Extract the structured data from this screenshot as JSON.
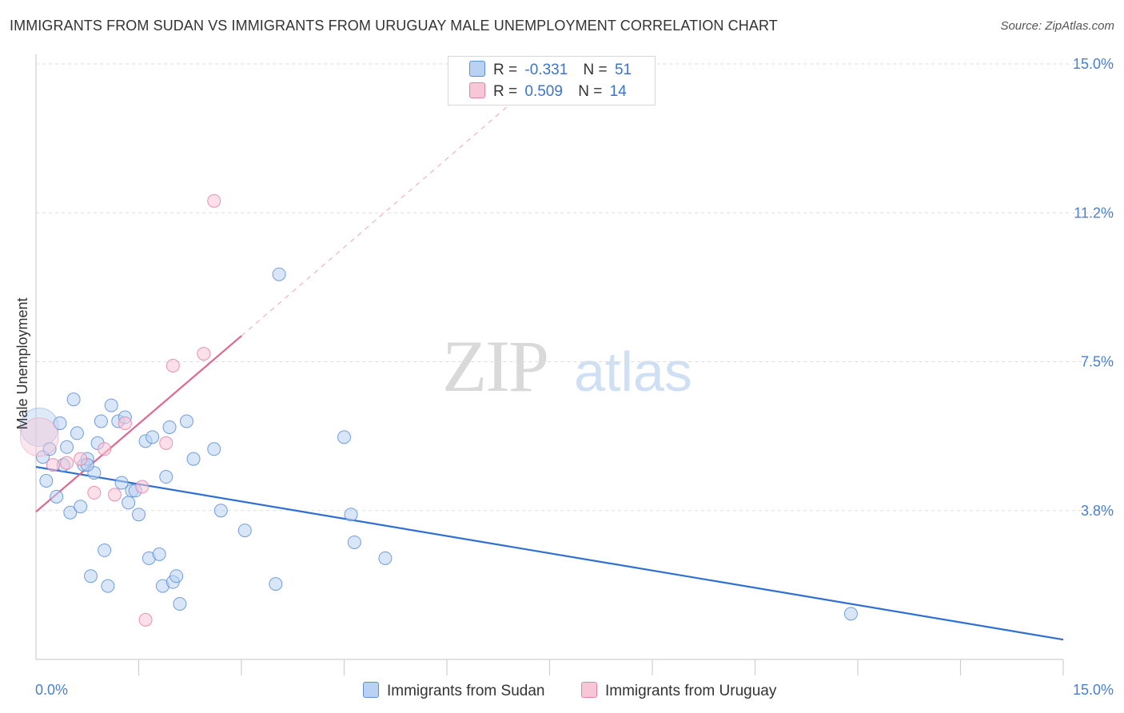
{
  "title": "IMMIGRANTS FROM SUDAN VS IMMIGRANTS FROM URUGUAY MALE UNEMPLOYMENT CORRELATION CHART",
  "source": "Source: ZipAtlas.com",
  "watermark": {
    "zip": "ZIP",
    "atlas": "atlas"
  },
  "legend": {
    "rows": [
      {
        "r_label": "R =",
        "r_value": "-0.331",
        "n_label": "N =",
        "n_value": "51"
      },
      {
        "r_label": "R =",
        "r_value": "0.509",
        "n_label": "N =",
        "n_value": "14"
      }
    ]
  },
  "chart_data": {
    "type": "scatter",
    "title": "IMMIGRANTS FROM SUDAN VS IMMIGRANTS FROM URUGUAY MALE UNEMPLOYMENT CORRELATION CHART",
    "xlabel": "",
    "ylabel": "Male Unemployment",
    "xlim": [
      0,
      15
    ],
    "ylim": [
      0,
      15
    ],
    "x_tick_labels": [
      "0.0%",
      "15.0%"
    ],
    "y_ticks": [
      3.75,
      7.5,
      11.25,
      15.0
    ],
    "y_tick_labels": [
      "3.8%",
      "7.5%",
      "11.2%",
      "15.0%"
    ],
    "grid": true,
    "legend_position": "bottom",
    "colors": {
      "sudan": "#5b8fd8",
      "sudan_fill": "#b9d1f2",
      "uruguay": "#e880a4",
      "uruguay_fill": "#f7c7d8",
      "sudan_line": "#2f6fcf",
      "uruguay_line": "#e0678f"
    },
    "series": [
      {
        "name": "Immigrants from Sudan",
        "trend": {
          "x0": 0.0,
          "y0": 4.85,
          "x1": 15.0,
          "y1": 0.5
        },
        "points": [
          {
            "x": 0.05,
            "y": 5.85,
            "big": true
          },
          {
            "x": 0.1,
            "y": 5.1
          },
          {
            "x": 0.15,
            "y": 4.5
          },
          {
            "x": 0.2,
            "y": 5.3
          },
          {
            "x": 0.3,
            "y": 4.1
          },
          {
            "x": 0.35,
            "y": 5.95
          },
          {
            "x": 0.4,
            "y": 4.9
          },
          {
            "x": 0.45,
            "y": 5.35
          },
          {
            "x": 0.5,
            "y": 3.7
          },
          {
            "x": 0.55,
            "y": 6.55
          },
          {
            "x": 0.6,
            "y": 5.7
          },
          {
            "x": 0.65,
            "y": 3.85
          },
          {
            "x": 0.7,
            "y": 4.9
          },
          {
            "x": 0.75,
            "y": 5.05
          },
          {
            "x": 0.8,
            "y": 2.1
          },
          {
            "x": 0.85,
            "y": 4.7
          },
          {
            "x": 0.9,
            "y": 5.45
          },
          {
            "x": 0.95,
            "y": 6.0
          },
          {
            "x": 1.0,
            "y": 2.75
          },
          {
            "x": 1.05,
            "y": 1.85
          },
          {
            "x": 1.1,
            "y": 6.4
          },
          {
            "x": 1.2,
            "y": 6.0
          },
          {
            "x": 1.25,
            "y": 4.45
          },
          {
            "x": 1.3,
            "y": 6.1
          },
          {
            "x": 1.35,
            "y": 3.95
          },
          {
            "x": 1.4,
            "y": 4.25
          },
          {
            "x": 1.5,
            "y": 3.65
          },
          {
            "x": 1.6,
            "y": 5.5
          },
          {
            "x": 1.65,
            "y": 2.55
          },
          {
            "x": 1.7,
            "y": 5.6
          },
          {
            "x": 1.8,
            "y": 2.65
          },
          {
            "x": 1.85,
            "y": 1.85
          },
          {
            "x": 1.9,
            "y": 4.6
          },
          {
            "x": 1.95,
            "y": 5.85
          },
          {
            "x": 2.0,
            "y": 1.95
          },
          {
            "x": 2.05,
            "y": 2.1
          },
          {
            "x": 2.1,
            "y": 1.4
          },
          {
            "x": 2.2,
            "y": 6.0
          },
          {
            "x": 2.3,
            "y": 5.05
          },
          {
            "x": 2.6,
            "y": 5.3
          },
          {
            "x": 2.7,
            "y": 3.75
          },
          {
            "x": 3.05,
            "y": 3.25
          },
          {
            "x": 3.5,
            "y": 1.9
          },
          {
            "x": 3.55,
            "y": 9.7
          },
          {
            "x": 4.5,
            "y": 5.6
          },
          {
            "x": 4.6,
            "y": 3.65
          },
          {
            "x": 4.65,
            "y": 2.95
          },
          {
            "x": 5.1,
            "y": 2.55
          },
          {
            "x": 11.9,
            "y": 1.15
          },
          {
            "x": 1.45,
            "y": 4.25
          },
          {
            "x": 0.75,
            "y": 4.9
          }
        ]
      },
      {
        "name": "Immigrants from Uruguay",
        "trend": {
          "x0": 0.0,
          "y0": 3.72,
          "x1": 3.0,
          "y1": 8.15,
          "dash_x1": 7.0,
          "dash_y1": 14.1
        },
        "points": [
          {
            "x": 0.05,
            "y": 5.6,
            "big": true
          },
          {
            "x": 0.25,
            "y": 4.9
          },
          {
            "x": 0.45,
            "y": 4.95
          },
          {
            "x": 0.65,
            "y": 5.05
          },
          {
            "x": 0.85,
            "y": 4.2
          },
          {
            "x": 1.0,
            "y": 5.3
          },
          {
            "x": 1.15,
            "y": 4.15
          },
          {
            "x": 1.3,
            "y": 5.95
          },
          {
            "x": 1.55,
            "y": 4.35
          },
          {
            "x": 1.6,
            "y": 1.0
          },
          {
            "x": 1.9,
            "y": 5.45
          },
          {
            "x": 2.0,
            "y": 7.4
          },
          {
            "x": 2.45,
            "y": 7.7
          },
          {
            "x": 2.6,
            "y": 11.55
          }
        ]
      }
    ]
  },
  "bottom_legend": {
    "sudan_label": "Immigrants from Sudan",
    "uruguay_label": "Immigrants from Uruguay"
  }
}
